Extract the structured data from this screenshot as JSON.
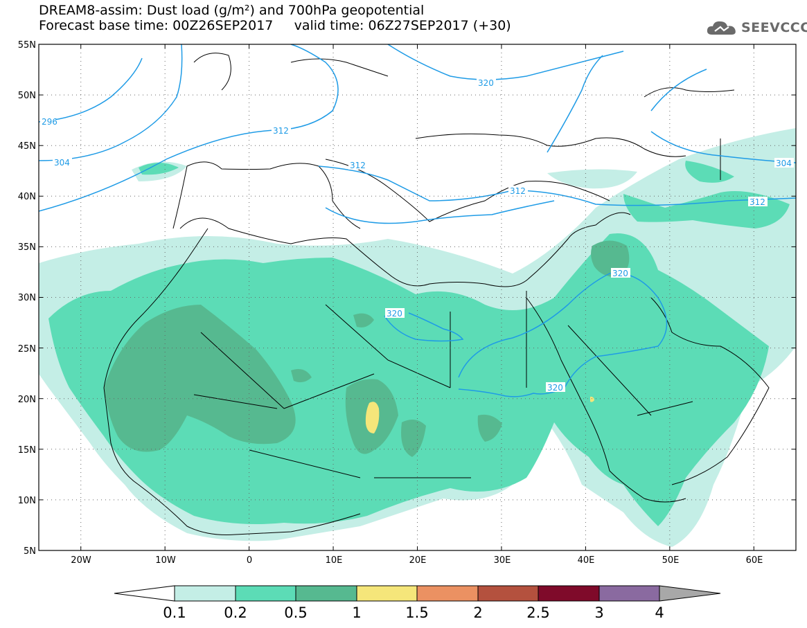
{
  "header": {
    "title_line1": "DREAM8-assim: Dust load (g/m²) and 700hPa geopotential",
    "title_line2": "Forecast base time: 00Z26SEP2017     valid time: 06Z27SEP2017 (+30)"
  },
  "logo": {
    "text": "SEEVCCC",
    "icon": "cloud-icon"
  },
  "map": {
    "lat_labels": [
      "55N",
      "50N",
      "45N",
      "40N",
      "35N",
      "30N",
      "25N",
      "20N",
      "15N",
      "10N",
      "5N"
    ],
    "lon_labels": [
      "20W",
      "10W",
      "0",
      "10E",
      "20E",
      "30E",
      "40E",
      "50E",
      "60E"
    ],
    "contour_labels": [
      "296",
      "304",
      "312",
      "312",
      "312",
      "312",
      "320",
      "320",
      "320",
      "320",
      "304"
    ]
  },
  "legend": {
    "tick_labels": [
      "0.1",
      "0.2",
      "0.5",
      "1",
      "1.5",
      "2",
      "2.5",
      "3",
      "4"
    ],
    "colors": [
      "#ffffff",
      "#c4eee6",
      "#5cdcb6",
      "#56b990",
      "#f5e67a",
      "#eb9162",
      "#b4513e",
      "#7f0a2a",
      "#8a6aa0",
      "#a8a8a8"
    ]
  },
  "colors": {
    "contour": "#1e9be6",
    "land_low": "#c4eee6",
    "land_mid": "#5cdcb6",
    "land_high": "#56b990",
    "hot": "#f5e67a"
  }
}
